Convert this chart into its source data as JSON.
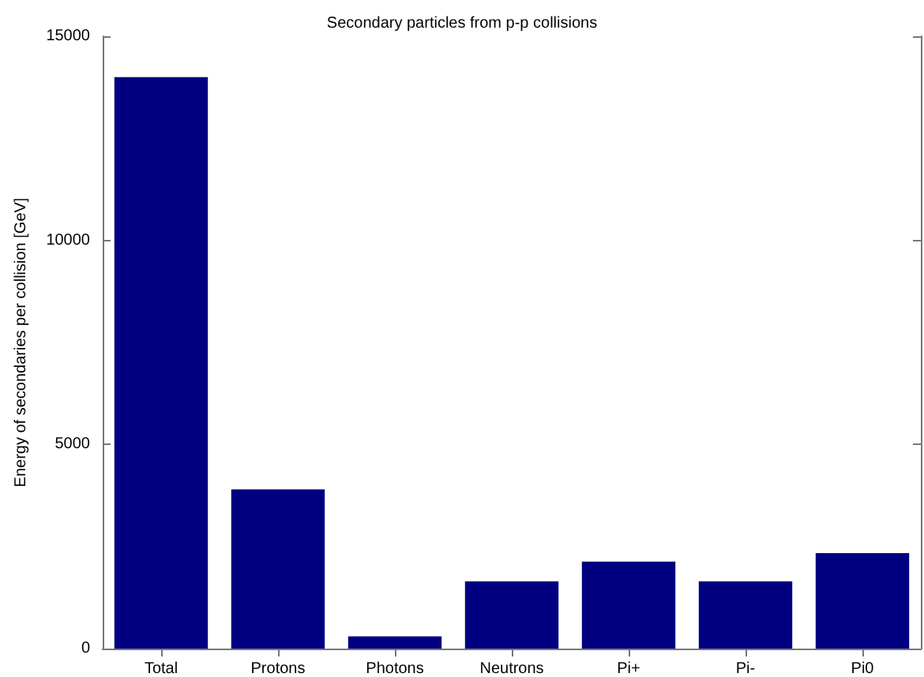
{
  "chart_data": {
    "type": "bar",
    "title": "Secondary particles from p-p collisions",
    "ylabel": "Energy of secondaries per collision [GeV]",
    "categories": [
      "Total",
      "Protons",
      "Photons",
      "Neutrons",
      "Pi+",
      "Pi-",
      "Pi0"
    ],
    "values": [
      14000,
      3900,
      300,
      1650,
      2130,
      1650,
      2340
    ],
    "color": "#000080",
    "ylim": [
      0,
      15000
    ],
    "yticks": [
      0,
      5000,
      10000,
      15000
    ],
    "grid": false
  }
}
